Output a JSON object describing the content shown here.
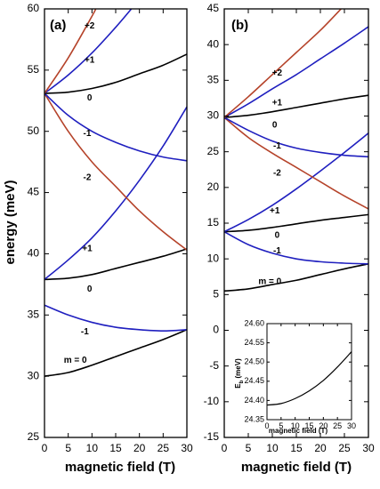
{
  "chart_data": [
    {
      "id": "a",
      "type": "line",
      "panel_label": "(a)",
      "xlabel": "magnetic field (T)",
      "ylabel": "energy (meV)",
      "xlim": [
        0,
        30
      ],
      "ylim": [
        25,
        60
      ],
      "xticks": [
        0,
        5,
        10,
        15,
        20,
        25,
        30
      ],
      "yticks": [
        25,
        30,
        35,
        40,
        45,
        50,
        55,
        60
      ],
      "colors": {
        "black": "#000000",
        "blue": "#1f1fbf",
        "red": "#b5432a"
      },
      "series": [
        {
          "color": "black",
          "x": [
            0,
            5,
            10,
            15,
            20,
            25,
            30
          ],
          "y": [
            30.0,
            30.3,
            30.9,
            31.6,
            32.3,
            33.0,
            33.8
          ]
        },
        {
          "color": "blue",
          "x": [
            0,
            5,
            10,
            15,
            20,
            25,
            30
          ],
          "y": [
            35.8,
            35.0,
            34.4,
            34.0,
            33.8,
            33.7,
            33.8
          ]
        },
        {
          "color": "black",
          "x": [
            0,
            5,
            10,
            15,
            20,
            25,
            30
          ],
          "y": [
            37.9,
            38.0,
            38.3,
            38.8,
            39.3,
            39.8,
            40.4
          ]
        },
        {
          "color": "blue",
          "x": [
            0,
            5,
            10,
            15,
            20,
            25,
            30
          ],
          "y": [
            37.9,
            39.5,
            41.3,
            43.5,
            46.0,
            48.8,
            52.0
          ]
        },
        {
          "color": "red",
          "x": [
            0,
            5,
            10,
            15,
            20,
            25,
            30
          ],
          "y": [
            53.1,
            50.0,
            47.5,
            45.5,
            43.5,
            41.8,
            40.3
          ]
        },
        {
          "color": "blue",
          "x": [
            0,
            5,
            10,
            15,
            20,
            25,
            30
          ],
          "y": [
            53.1,
            51.3,
            50.0,
            49.1,
            48.4,
            47.9,
            47.6
          ]
        },
        {
          "color": "black",
          "x": [
            0,
            5,
            10,
            15,
            20,
            25,
            30
          ],
          "y": [
            53.1,
            53.2,
            53.5,
            54.0,
            54.7,
            55.4,
            56.3
          ]
        },
        {
          "color": "blue",
          "x": [
            0,
            5,
            10,
            15,
            18.3
          ],
          "y": [
            53.1,
            54.6,
            56.4,
            58.5,
            60.0
          ]
        },
        {
          "color": "red",
          "x": [
            0,
            5,
            10,
            10.8
          ],
          "y": [
            53.1,
            56.0,
            59.4,
            60.0
          ]
        }
      ],
      "annotations": [
        {
          "text": "m = 0",
          "x": 6.5,
          "y": 31.3
        },
        {
          "text": "-1",
          "x": 8.5,
          "y": 33.6
        },
        {
          "text": "0",
          "x": 9.5,
          "y": 37.1
        },
        {
          "text": "+1",
          "x": 9.0,
          "y": 40.4
        },
        {
          "text": "-2",
          "x": 9.0,
          "y": 46.2
        },
        {
          "text": "-1",
          "x": 9.0,
          "y": 49.8
        },
        {
          "text": "0",
          "x": 9.5,
          "y": 52.7
        },
        {
          "text": "+1",
          "x": 9.5,
          "y": 55.8
        },
        {
          "text": "+2",
          "x": 9.5,
          "y": 58.6
        }
      ]
    },
    {
      "id": "b",
      "type": "line",
      "panel_label": "(b)",
      "xlabel": "magnetic field (T)",
      "ylabel": "",
      "xlim": [
        0,
        30
      ],
      "ylim": [
        -15,
        45
      ],
      "xticks": [
        0,
        5,
        10,
        15,
        20,
        25,
        30
      ],
      "yticks": [
        -15,
        -10,
        -5,
        0,
        5,
        10,
        15,
        20,
        25,
        30,
        35,
        40,
        45
      ],
      "colors": {
        "black": "#000000",
        "blue": "#1f1fbf",
        "red": "#b5432a"
      },
      "series": [
        {
          "color": "black",
          "x": [
            0,
            5,
            10,
            15,
            20,
            25,
            30
          ],
          "y": [
            5.5,
            5.8,
            6.4,
            7.0,
            7.8,
            8.6,
            9.3
          ]
        },
        {
          "color": "blue",
          "x": [
            0,
            5,
            10,
            15,
            20,
            25,
            30
          ],
          "y": [
            13.8,
            12.0,
            10.8,
            10.0,
            9.6,
            9.4,
            9.3
          ]
        },
        {
          "color": "black",
          "x": [
            0,
            5,
            10,
            15,
            20,
            25,
            30
          ],
          "y": [
            13.8,
            14.0,
            14.4,
            14.9,
            15.4,
            15.8,
            16.2
          ]
        },
        {
          "color": "blue",
          "x": [
            0,
            5,
            10,
            15,
            20,
            25,
            30
          ],
          "y": [
            13.8,
            15.5,
            17.5,
            19.8,
            22.3,
            24.9,
            27.6
          ]
        },
        {
          "color": "red",
          "x": [
            0,
            5,
            10,
            15,
            20,
            25,
            30
          ],
          "y": [
            29.8,
            27.0,
            24.8,
            22.8,
            20.8,
            18.8,
            17.0
          ]
        },
        {
          "color": "blue",
          "x": [
            0,
            5,
            10,
            15,
            20,
            25,
            30
          ],
          "y": [
            29.8,
            28.0,
            26.5,
            25.5,
            24.9,
            24.5,
            24.3
          ]
        },
        {
          "color": "black",
          "x": [
            0,
            5,
            10,
            15,
            20,
            25,
            30
          ],
          "y": [
            29.8,
            30.1,
            30.6,
            31.2,
            31.8,
            32.4,
            32.9
          ]
        },
        {
          "color": "blue",
          "x": [
            0,
            5,
            10,
            15,
            20,
            25,
            30
          ],
          "y": [
            29.8,
            31.7,
            33.8,
            35.8,
            38.0,
            40.2,
            42.5
          ]
        },
        {
          "color": "red",
          "x": [
            0,
            5,
            10,
            15,
            20,
            24.3
          ],
          "y": [
            29.8,
            32.7,
            35.8,
            38.9,
            42.0,
            45.0
          ]
        }
      ],
      "annotations": [
        {
          "text": "m = 0",
          "x": 9.5,
          "y": 6.8
        },
        {
          "text": "-1",
          "x": 11.0,
          "y": 11.1
        },
        {
          "text": "0",
          "x": 11.0,
          "y": 13.3
        },
        {
          "text": "+1",
          "x": 10.5,
          "y": 16.7
        },
        {
          "text": "-2",
          "x": 11.0,
          "y": 22.0
        },
        {
          "text": "-1",
          "x": 11.0,
          "y": 25.8
        },
        {
          "text": "0",
          "x": 10.5,
          "y": 28.7
        },
        {
          "text": "+1",
          "x": 11.0,
          "y": 31.8
        },
        {
          "text": "+2",
          "x": 11.0,
          "y": 36.0
        }
      ]
    },
    {
      "id": "inset",
      "type": "line",
      "xlabel": "magnetic field (T)",
      "ylabel": "E_b (meV)",
      "ylabel_main": "E",
      "ylabel_sub": "b",
      "ylabel_rest": " (meV)",
      "xlim": [
        0,
        30
      ],
      "ylim": [
        24.35,
        24.6
      ],
      "xticks": [
        0,
        5,
        10,
        15,
        20,
        25,
        30
      ],
      "yticks": [
        24.35,
        24.4,
        24.45,
        24.5,
        24.55,
        24.6
      ],
      "ytick_labels": [
        "24.35",
        "24.40",
        "24.45",
        "24.50",
        "24.55",
        "24.60"
      ],
      "series": [
        {
          "color": "black",
          "x": [
            0,
            5,
            10,
            15,
            20,
            25,
            30
          ],
          "y": [
            24.388,
            24.392,
            24.405,
            24.425,
            24.452,
            24.487,
            24.527
          ]
        }
      ]
    }
  ]
}
